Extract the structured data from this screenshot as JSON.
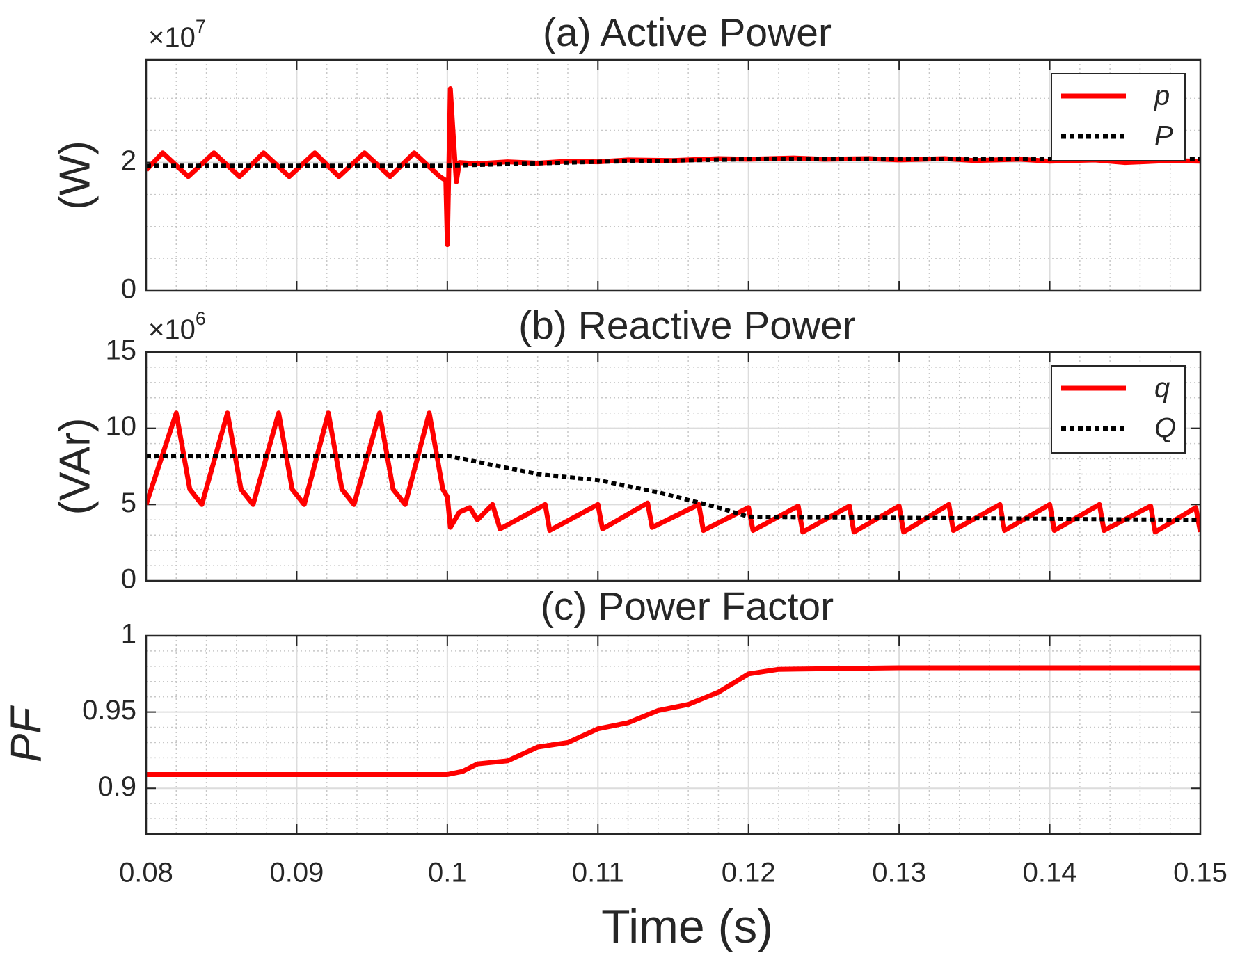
{
  "chart_data": [
    {
      "type": "line",
      "title": "(a) Active Power",
      "ylabel": "(W)",
      "multiplier": "×10",
      "exponent": "7",
      "xlim": [
        0.08,
        0.15
      ],
      "xticks": [
        0.08,
        0.09,
        0.1,
        0.11,
        0.12,
        0.13,
        0.14,
        0.15
      ],
      "xminor": 5,
      "ylim": [
        0,
        3.6
      ],
      "yticks": [
        0,
        2
      ],
      "yminor": 4,
      "grid": true,
      "legend": "upper right",
      "series": [
        {
          "name": "p",
          "color": "#ff0000",
          "style": "solid",
          "x": [
            0.08,
            0.0811,
            0.0828,
            0.0845,
            0.0862,
            0.0878,
            0.0895,
            0.0912,
            0.0928,
            0.0945,
            0.0962,
            0.0978,
            0.0995,
            0.0999,
            0.1,
            0.1002,
            0.1004,
            0.1006,
            0.1008,
            0.102,
            0.104,
            0.106,
            0.108,
            0.11,
            0.112,
            0.115,
            0.118,
            0.12,
            0.123,
            0.125,
            0.128,
            0.13,
            0.133,
            0.135,
            0.138,
            0.14,
            0.143,
            0.145,
            0.148,
            0.15
          ],
          "values": [
            1.88,
            2.15,
            1.78,
            2.15,
            1.78,
            2.15,
            1.78,
            2.15,
            1.78,
            2.15,
            1.78,
            2.15,
            1.78,
            1.72,
            0.72,
            3.15,
            2.4,
            1.7,
            2.0,
            1.98,
            2.01,
            1.99,
            2.02,
            2.01,
            2.04,
            2.03,
            2.06,
            2.05,
            2.07,
            2.05,
            2.06,
            2.04,
            2.06,
            2.03,
            2.05,
            2.02,
            2.04,
            2.0,
            2.03,
            2.02
          ]
        },
        {
          "name": "P",
          "color": "#000000",
          "style": "dotted",
          "x": [
            0.08,
            0.1,
            0.105,
            0.11,
            0.115,
            0.12,
            0.15
          ],
          "values": [
            1.95,
            1.95,
            1.98,
            2.01,
            2.03,
            2.05,
            2.05
          ]
        }
      ]
    },
    {
      "type": "line",
      "title": "(b) Reactive Power",
      "ylabel": "(VAr)",
      "multiplier": "×10",
      "exponent": "6",
      "xlim": [
        0.08,
        0.15
      ],
      "xticks": [
        0.08,
        0.09,
        0.1,
        0.11,
        0.12,
        0.13,
        0.14,
        0.15
      ],
      "xminor": 5,
      "ylim": [
        0,
        15
      ],
      "yticks": [
        0,
        5,
        10,
        15
      ],
      "yminor": 5,
      "grid": true,
      "legend": "upper right",
      "series": [
        {
          "name": "q",
          "color": "#ff0000",
          "style": "solid",
          "x": [
            0.08,
            0.082,
            0.0829,
            0.0837,
            0.0854,
            0.0863,
            0.0871,
            0.0888,
            0.0897,
            0.0905,
            0.0921,
            0.093,
            0.0938,
            0.0955,
            0.0964,
            0.0972,
            0.0988,
            0.0997,
            0.1,
            0.1002,
            0.1008,
            0.1015,
            0.102,
            0.103,
            0.1035,
            0.1065,
            0.1068,
            0.11,
            0.1103,
            0.1133,
            0.1136,
            0.1167,
            0.117,
            0.12,
            0.1203,
            0.1233,
            0.1236,
            0.1267,
            0.127,
            0.13,
            0.1303,
            0.1333,
            0.1336,
            0.1367,
            0.137,
            0.14,
            0.1403,
            0.1433,
            0.1436,
            0.1467,
            0.147,
            0.1497,
            0.15
          ],
          "values": [
            5,
            11,
            6,
            5,
            11,
            6,
            5,
            11,
            6,
            5,
            11,
            6,
            5,
            11,
            6,
            5,
            11,
            6,
            5.5,
            3.5,
            4.5,
            4.8,
            4.0,
            5.0,
            3.4,
            5.0,
            3.3,
            5.0,
            3.4,
            5.1,
            3.5,
            5.0,
            3.3,
            4.8,
            3.3,
            4.9,
            3.2,
            4.9,
            3.2,
            4.9,
            3.2,
            5.0,
            3.3,
            5.0,
            3.3,
            5.0,
            3.3,
            5.0,
            3.3,
            4.9,
            3.2,
            4.8,
            3.2
          ]
        },
        {
          "name": "Q",
          "color": "#000000",
          "style": "dotted",
          "x": [
            0.08,
            0.1,
            0.103,
            0.106,
            0.11,
            0.114,
            0.118,
            0.12,
            0.15
          ],
          "values": [
            8.2,
            8.2,
            7.6,
            7.0,
            6.6,
            5.8,
            4.8,
            4.2,
            4.0
          ]
        }
      ]
    },
    {
      "type": "line",
      "title": "(c) Power Factor",
      "ylabel": "PF",
      "xlabel": "Time (s)",
      "xlim": [
        0.08,
        0.15
      ],
      "xticks": [
        0.08,
        0.09,
        0.1,
        0.11,
        0.12,
        0.13,
        0.14,
        0.15
      ],
      "xminor": 5,
      "ylim": [
        0.87,
        1
      ],
      "yticks": [
        0.9,
        0.95,
        1
      ],
      "yminor": 5,
      "grid": true,
      "series": [
        {
          "color": "#ff0000",
          "style": "solid",
          "x": [
            0.08,
            0.1,
            0.101,
            0.102,
            0.104,
            0.106,
            0.108,
            0.11,
            0.112,
            0.114,
            0.116,
            0.118,
            0.12,
            0.122,
            0.13,
            0.15
          ],
          "values": [
            0.909,
            0.909,
            0.911,
            0.916,
            0.918,
            0.927,
            0.93,
            0.939,
            0.943,
            0.951,
            0.955,
            0.963,
            0.975,
            0.978,
            0.979,
            0.979
          ]
        }
      ]
    }
  ]
}
